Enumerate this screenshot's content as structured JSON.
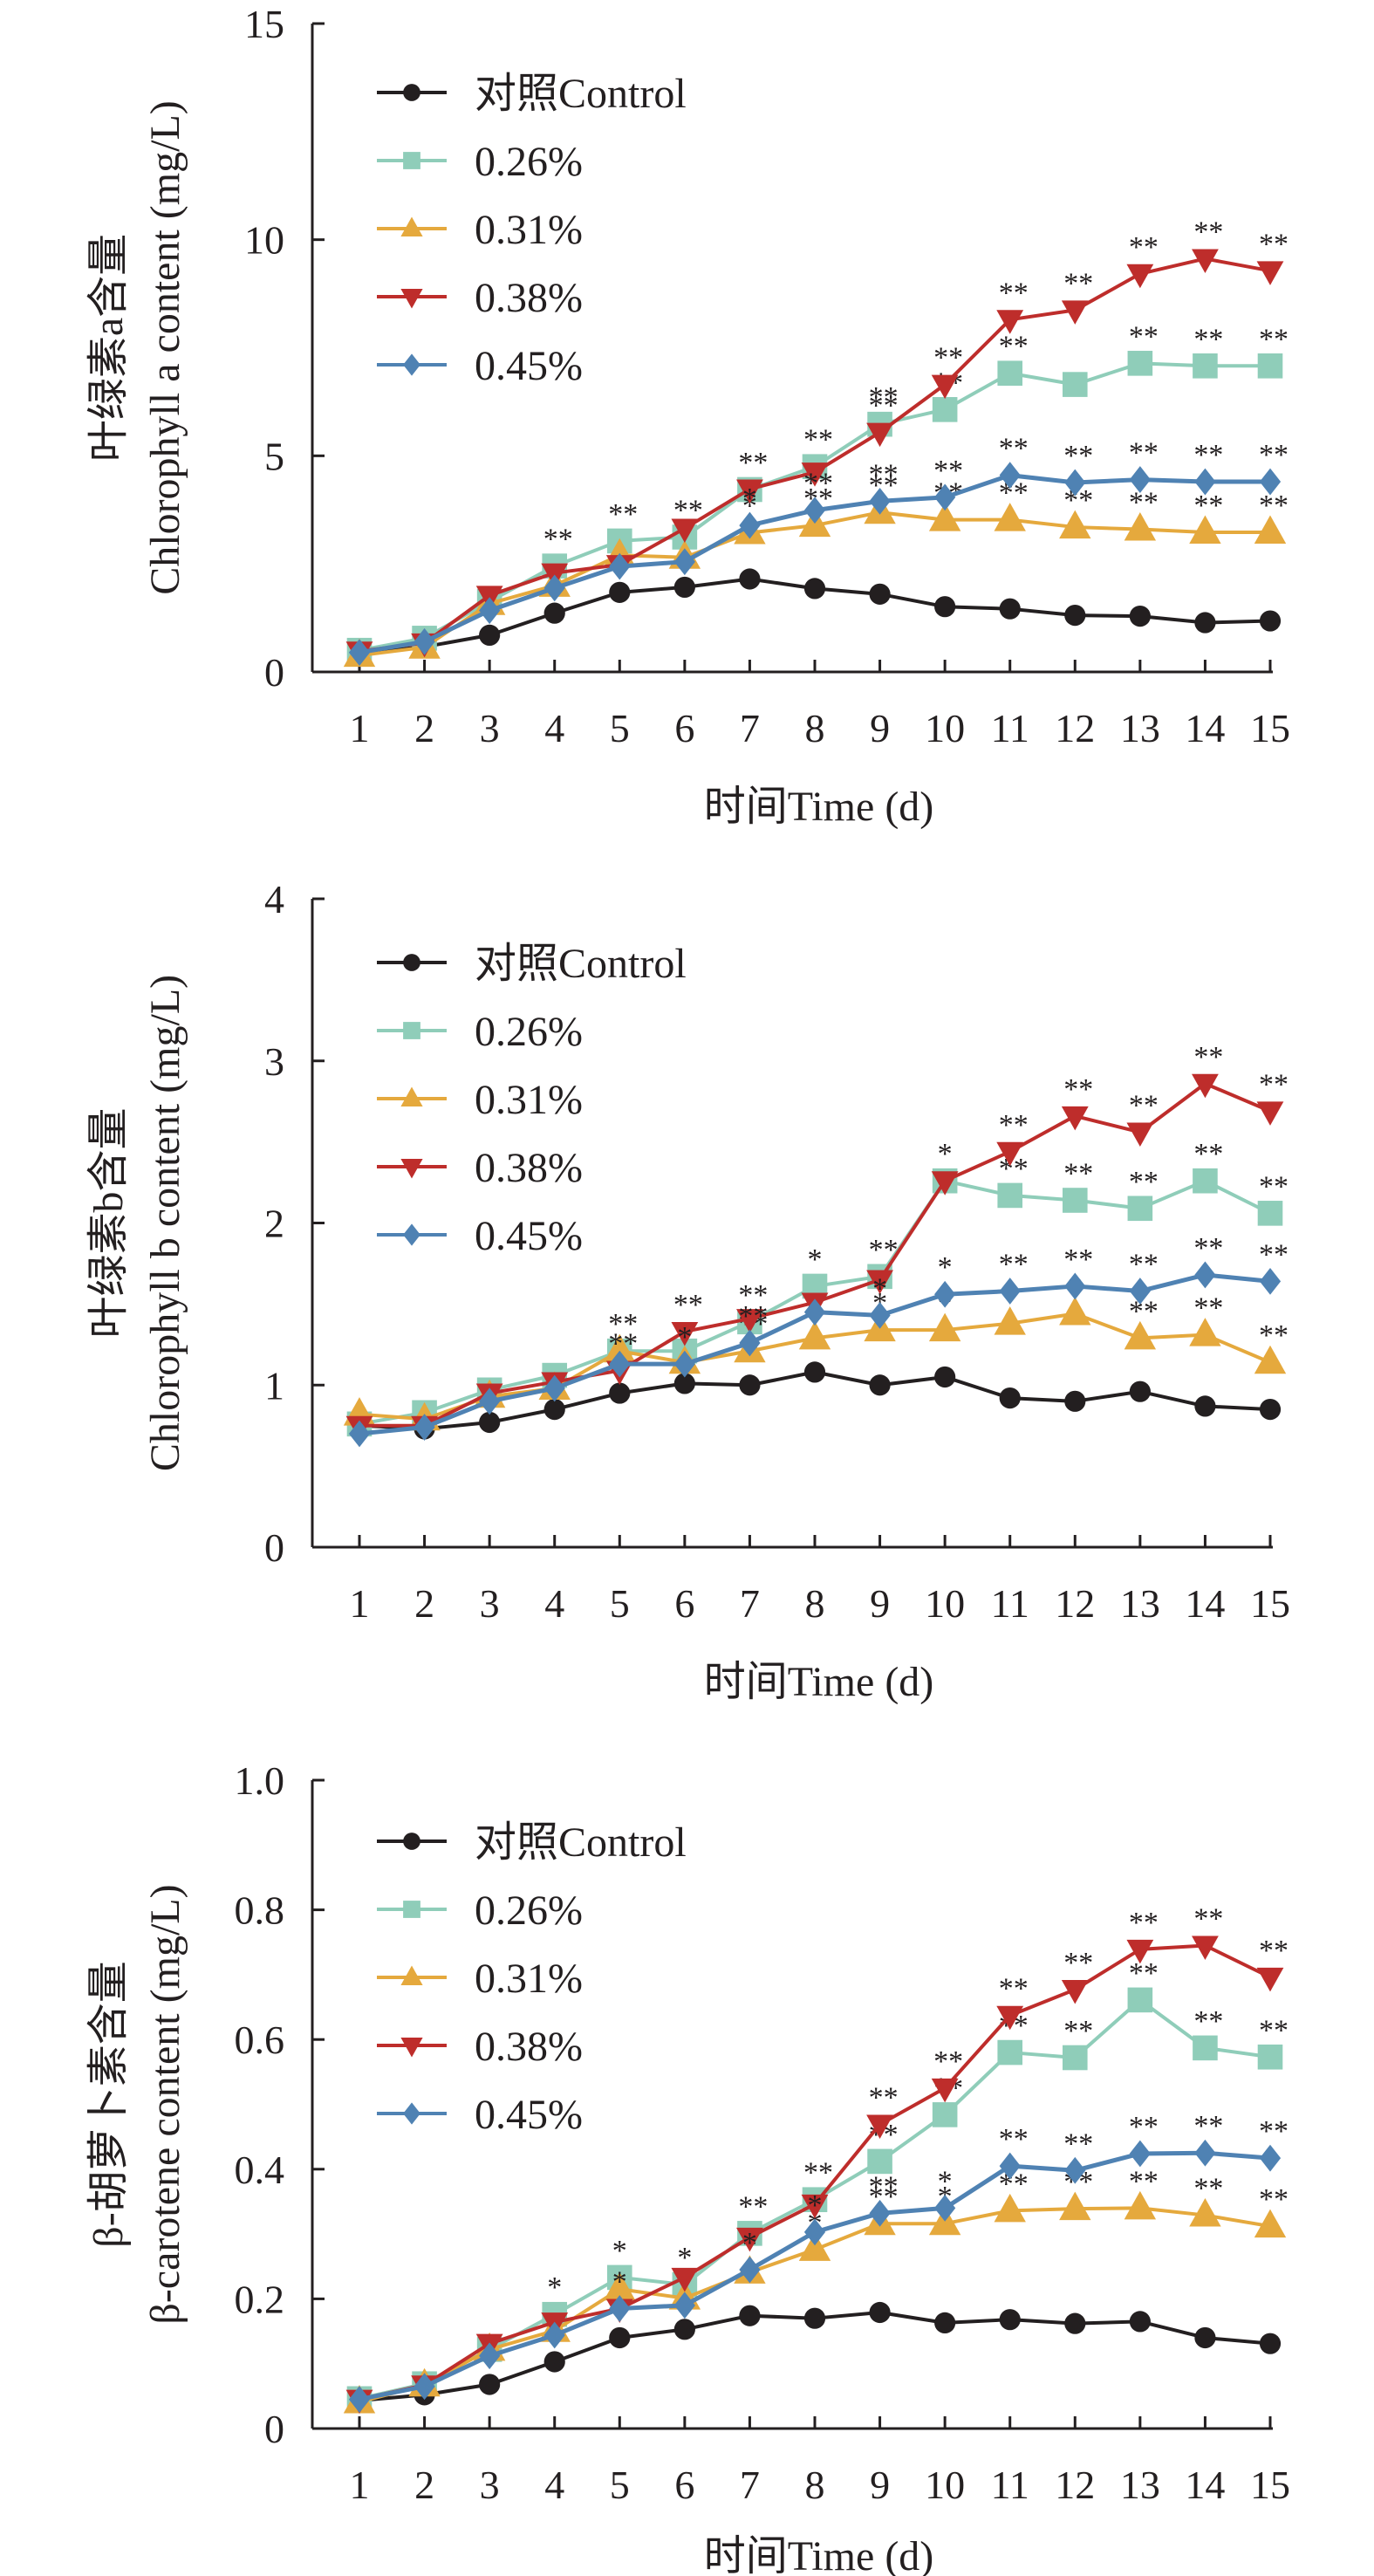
{
  "chart_data": [
    {
      "type": "line",
      "title": "",
      "xlabel": "时间Time (d)",
      "ylabel_cn": "叶绿素a含量",
      "ylabel_en": "Chlorophyll a content (mg/L)",
      "ylim": [
        0,
        15
      ],
      "yticks": [
        "0",
        "5",
        "10",
        "15"
      ],
      "ytick_values": [
        0,
        5,
        10,
        15
      ],
      "categories": [
        "1",
        "2",
        "3",
        "4",
        "5",
        "6",
        "7",
        "8",
        "9",
        "10",
        "11",
        "12",
        "13",
        "14",
        "15"
      ],
      "grid": false,
      "legend_position": "top-left",
      "series": [
        {
          "name": "对照Control",
          "color": "#231f20",
          "marker": "circle",
          "values": [
            0.44,
            0.58,
            0.85,
            1.36,
            1.84,
            1.96,
            2.15,
            1.93,
            1.8,
            1.51,
            1.46,
            1.31,
            1.29,
            1.14,
            1.18
          ],
          "sig": [
            "",
            "",
            "",
            "",
            "",
            "",
            "",
            "",
            "",
            "",
            "",
            "",
            "",
            "",
            ""
          ]
        },
        {
          "name": "0.26%",
          "color": "#8fcdb9",
          "marker": "square",
          "values": [
            0.5,
            0.78,
            1.63,
            2.45,
            3.03,
            3.12,
            4.22,
            4.75,
            5.73,
            6.07,
            6.91,
            6.65,
            7.14,
            7.08,
            7.08
          ],
          "sig": [
            "",
            "",
            "",
            "**",
            "**",
            "**",
            "**",
            "**",
            "**",
            "**",
            "**",
            "",
            "**",
            "**",
            "**"
          ]
        },
        {
          "name": "0.31%",
          "color": "#e5a93d",
          "marker": "triangle-up",
          "values": [
            0.38,
            0.57,
            1.58,
            2.0,
            2.7,
            2.65,
            3.22,
            3.39,
            3.69,
            3.52,
            3.52,
            3.35,
            3.3,
            3.23,
            3.23
          ],
          "sig": [
            "",
            "",
            "",
            "",
            "",
            "",
            "*",
            "**",
            "**",
            "**",
            "**",
            "**",
            "**",
            "**",
            "**"
          ]
        },
        {
          "name": "0.38%",
          "color": "#be2d2b",
          "marker": "triangle-down",
          "values": [
            0.48,
            0.67,
            1.77,
            2.29,
            2.48,
            3.32,
            4.23,
            4.62,
            5.54,
            6.65,
            8.15,
            8.37,
            9.21,
            9.56,
            9.28
          ],
          "sig": [
            "",
            "",
            "",
            "",
            "",
            "",
            "",
            "",
            "**",
            "**",
            "**",
            "**",
            "**",
            "**",
            "**"
          ]
        },
        {
          "name": "0.45%",
          "color": "#4f82b3",
          "marker": "diamond",
          "values": [
            0.45,
            0.7,
            1.42,
            1.94,
            2.44,
            2.55,
            3.39,
            3.74,
            3.95,
            4.04,
            4.55,
            4.38,
            4.45,
            4.4,
            4.4
          ],
          "sig": [
            "",
            "",
            "",
            "",
            "",
            "",
            "*",
            "**",
            "**",
            "**",
            "**",
            "**",
            "**",
            "**",
            "**"
          ]
        }
      ]
    },
    {
      "type": "line",
      "title": "",
      "xlabel": "时间Time (d)",
      "ylabel_cn": "叶绿素b含量",
      "ylabel_en": "Chlorophyll b content (mg/L)",
      "ylim": [
        0,
        4
      ],
      "yticks": [
        "0",
        "1",
        "2",
        "3",
        "4"
      ],
      "ytick_values": [
        0,
        1,
        2,
        3,
        4
      ],
      "categories": [
        "1",
        "2",
        "3",
        "4",
        "5",
        "6",
        "7",
        "8",
        "9",
        "10",
        "11",
        "12",
        "13",
        "14",
        "15"
      ],
      "grid": false,
      "legend_position": "top-left",
      "series": [
        {
          "name": "对照Control",
          "color": "#231f20",
          "marker": "circle",
          "values": [
            0.75,
            0.73,
            0.77,
            0.85,
            0.95,
            1.01,
            1.0,
            1.08,
            1.0,
            1.05,
            0.92,
            0.9,
            0.96,
            0.87,
            0.85
          ],
          "sig": [
            "",
            "",
            "",
            "",
            "",
            "",
            "",
            "",
            "",
            "",
            "",
            "",
            "",
            "",
            ""
          ]
        },
        {
          "name": "0.26%",
          "color": "#8fcdb9",
          "marker": "square",
          "values": [
            0.76,
            0.83,
            0.97,
            1.06,
            1.21,
            1.21,
            1.39,
            1.61,
            1.67,
            2.26,
            2.17,
            2.14,
            2.09,
            2.26,
            2.06
          ],
          "sig": [
            "",
            "",
            "",
            "",
            "**",
            "",
            "**",
            "*",
            "**",
            "*",
            "**",
            "**",
            "**",
            "**",
            "**"
          ]
        },
        {
          "name": "0.31%",
          "color": "#e5a93d",
          "marker": "triangle-up",
          "values": [
            0.82,
            0.79,
            0.93,
            0.98,
            1.21,
            1.14,
            1.21,
            1.29,
            1.34,
            1.34,
            1.38,
            1.44,
            1.29,
            1.31,
            1.14
          ],
          "sig": [
            "",
            "",
            "",
            "",
            "",
            "",
            "**",
            "*",
            "*",
            "*",
            "*",
            "*",
            "**",
            "**",
            "**"
          ]
        },
        {
          "name": "0.38%",
          "color": "#be2d2b",
          "marker": "triangle-down",
          "values": [
            0.75,
            0.75,
            0.95,
            1.02,
            1.09,
            1.33,
            1.41,
            1.51,
            1.65,
            2.26,
            2.44,
            2.66,
            2.56,
            2.86,
            2.69
          ],
          "sig": [
            "",
            "",
            "",
            "",
            "**",
            "**",
            "",
            "",
            "",
            "",
            "**",
            "**",
            "**",
            "**",
            "**"
          ]
        },
        {
          "name": "0.45%",
          "color": "#4f82b3",
          "marker": "diamond",
          "values": [
            0.7,
            0.74,
            0.9,
            0.98,
            1.13,
            1.13,
            1.26,
            1.45,
            1.43,
            1.56,
            1.58,
            1.61,
            1.58,
            1.68,
            1.64
          ],
          "sig": [
            "",
            "",
            "",
            "",
            "",
            "*",
            "**",
            "",
            "*",
            "*",
            "**",
            "**",
            "**",
            "**",
            "**"
          ]
        }
      ]
    },
    {
      "type": "line",
      "title": "",
      "xlabel": "时间Time (d)",
      "ylabel_cn": "β-胡萝卜素含量",
      "ylabel_en": "β-carotene content (mg/L)",
      "ylim": [
        0,
        1.0
      ],
      "yticks": [
        "0",
        "0.2",
        "0.4",
        "0.6",
        "0.8",
        "1.0"
      ],
      "ytick_values": [
        0,
        0.2,
        0.4,
        0.6,
        0.8,
        1.0
      ],
      "categories": [
        "1",
        "2",
        "3",
        "4",
        "5",
        "6",
        "7",
        "8",
        "9",
        "10",
        "11",
        "12",
        "13",
        "14",
        "15"
      ],
      "grid": false,
      "legend_position": "top-left",
      "series": [
        {
          "name": "对照Control",
          "color": "#231f20",
          "marker": "circle",
          "values": [
            0.043,
            0.052,
            0.068,
            0.103,
            0.14,
            0.153,
            0.174,
            0.17,
            0.179,
            0.163,
            0.168,
            0.162,
            0.165,
            0.14,
            0.131
          ],
          "sig": [
            "",
            "",
            "",
            "",
            "",
            "",
            "",
            "",
            "",
            "",
            "",
            "",
            "",
            "",
            ""
          ]
        },
        {
          "name": "0.26%",
          "color": "#8fcdb9",
          "marker": "square",
          "values": [
            0.046,
            0.069,
            0.122,
            0.176,
            0.233,
            0.222,
            0.301,
            0.353,
            0.412,
            0.484,
            0.58,
            0.572,
            0.661,
            0.587,
            0.573
          ],
          "sig": [
            "",
            "",
            "",
            "*",
            "*",
            "*",
            "**",
            "**",
            "**",
            "**",
            "**",
            "**",
            "**",
            "**",
            "**"
          ]
        },
        {
          "name": "0.31%",
          "color": "#e5a93d",
          "marker": "triangle-up",
          "values": [
            0.041,
            0.067,
            0.122,
            0.151,
            0.215,
            0.201,
            0.241,
            0.276,
            0.316,
            0.316,
            0.336,
            0.339,
            0.34,
            0.329,
            0.312
          ],
          "sig": [
            "",
            "",
            "",
            "",
            "",
            "",
            "*",
            "*",
            "**",
            "*",
            "**",
            "**",
            "**",
            "**",
            "**"
          ]
        },
        {
          "name": "0.38%",
          "color": "#be2d2b",
          "marker": "triangle-down",
          "values": [
            0.045,
            0.067,
            0.131,
            0.164,
            0.185,
            0.233,
            0.295,
            0.346,
            0.469,
            0.525,
            0.637,
            0.677,
            0.739,
            0.745,
            0.696
          ],
          "sig": [
            "",
            "",
            "",
            "",
            "",
            "",
            "",
            "",
            "**",
            "**",
            "**",
            "**",
            "**",
            "**",
            "**"
          ]
        },
        {
          "name": "0.45%",
          "color": "#4f82b3",
          "marker": "diamond",
          "values": [
            0.045,
            0.065,
            0.112,
            0.144,
            0.185,
            0.19,
            0.245,
            0.303,
            0.332,
            0.34,
            0.405,
            0.398,
            0.424,
            0.425,
            0.417
          ],
          "sig": [
            "",
            "",
            "",
            "",
            "*",
            "",
            "*",
            "*",
            "**",
            "*",
            "**",
            "**",
            "**",
            "**",
            "**"
          ]
        }
      ]
    }
  ]
}
